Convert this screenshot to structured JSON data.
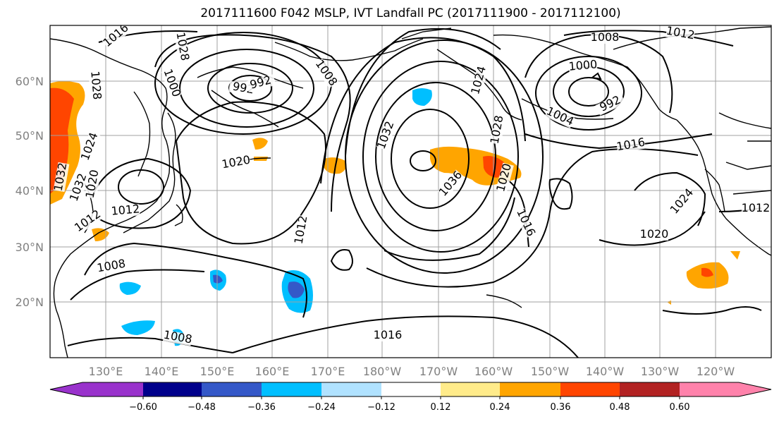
{
  "title": "2017111600 F042 MSLP, IVT Landfall PC (2017111900 - 2017112100)",
  "map": {
    "lon_labels": [
      "130°E",
      "140°E",
      "150°E",
      "160°E",
      "170°E",
      "180°W",
      "170°W",
      "160°W",
      "150°W",
      "140°W",
      "130°W",
      "120°W"
    ],
    "lat_labels": [
      "60°N",
      "50°N",
      "40°N",
      "30°N",
      "20°N"
    ]
  },
  "contour_labels": [
    "1016",
    "1012",
    "1008",
    "1000",
    "992",
    "992",
    "1008",
    "1020",
    "1016",
    "1024",
    "1028",
    "1032",
    "1032",
    "1036",
    "1028",
    "1024",
    "1020",
    "1016",
    "1012",
    "1008",
    "1000",
    "992",
    "1004",
    "1016",
    "1024",
    "1012",
    "1028",
    "1020",
    "1012",
    "1032",
    "1020",
    "1012",
    "1008",
    "1008",
    "1016"
  ],
  "colorbar": {
    "colors": [
      "#9932cc",
      "#00008b",
      "#3458c8",
      "#00bfff",
      "#b0e2ff",
      "#ffffff",
      "#ffeb8a",
      "#ffa500",
      "#ff4500",
      "#b22222",
      "#ff82ab"
    ],
    "tick_labels": [
      "−0.60",
      "−0.48",
      "−0.36",
      "−0.24",
      "−0.12",
      "0.12",
      "0.24",
      "0.36",
      "0.48",
      "0.60"
    ]
  }
}
